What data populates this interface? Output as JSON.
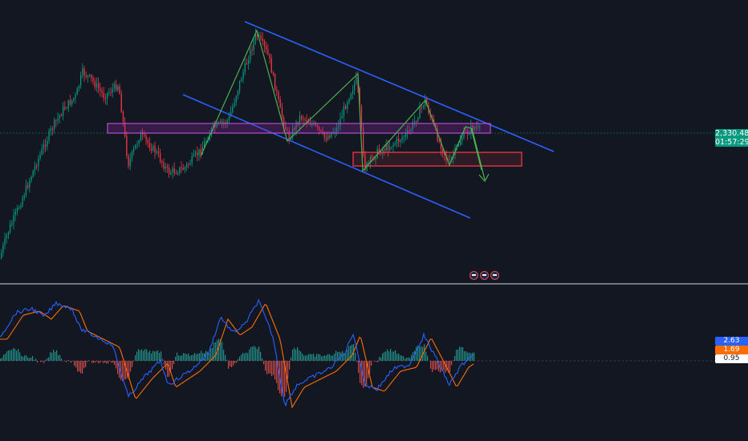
{
  "price_scale": {
    "last_price": "2,330.48",
    "countdown": "01:57:29",
    "last_price_color": "#089981"
  },
  "indicator_scale": {
    "values": [
      {
        "text": "2.63",
        "color": "#2962ff",
        "text_color": "#ffffff"
      },
      {
        "text": "1.69",
        "color": "#ff6d00",
        "text_color": "#ffffff"
      },
      {
        "text": "0.95",
        "color": "#ffffff",
        "text_color": "#131722"
      }
    ]
  },
  "event_icons": [
    "flag-event-icon",
    "flag-event-icon",
    "flag-event-icon"
  ],
  "chart_data": {
    "type": "candlestick",
    "series_color_up": "#089981",
    "series_color_down": "#f23645",
    "grid": false,
    "legend": "none",
    "annotations": [
      {
        "type": "descending-channel",
        "color": "#2962ff"
      },
      {
        "type": "zigzag-wave",
        "color": "#4caf50"
      },
      {
        "type": "horizontal-zone",
        "color": "#9c27b0"
      },
      {
        "type": "support-zone",
        "color": "#f23645"
      },
      {
        "type": "projection-arrow",
        "direction": "down",
        "color": "#4caf50"
      }
    ],
    "indicator": {
      "type": "macd",
      "series": [
        {
          "color": "#2962ff"
        },
        {
          "color": "#ff6d00"
        }
      ]
    }
  }
}
